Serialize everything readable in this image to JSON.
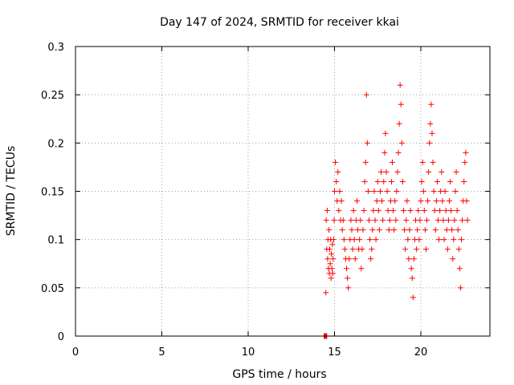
{
  "chart_data": {
    "type": "scatter",
    "title": "Day 147 of 2024, SRMTID for receiver kkai",
    "xlabel": "GPS time / hours",
    "ylabel": "SRMTID / TECUs",
    "xlim": [
      0,
      24
    ],
    "ylim": [
      0,
      0.3
    ],
    "xticks": [
      0,
      5,
      10,
      15,
      20
    ],
    "yticks": [
      0,
      0.05,
      0.1,
      0.15,
      0.2,
      0.25,
      0.3
    ],
    "xtick_labels": [
      "0",
      "5",
      "10",
      "15",
      "20"
    ],
    "ytick_labels": [
      "0",
      "0.05",
      "0.1",
      "0.15",
      "0.2",
      "0.25",
      "0.3"
    ],
    "grid": true,
    "marker": "+",
    "color": "#ff0000",
    "zero_cluster": {
      "x_start": 14.4,
      "x_end": 14.55,
      "y": 0
    },
    "series": [
      {
        "name": "SRMTID",
        "x": [
          14.5,
          14.52,
          14.55,
          14.58,
          14.6,
          14.62,
          14.65,
          14.68,
          14.7,
          14.72,
          14.75,
          14.78,
          14.8,
          14.82,
          14.85,
          14.88,
          14.9,
          14.92,
          14.95,
          14.98,
          15.0,
          15.05,
          15.1,
          15.15,
          15.2,
          15.25,
          15.3,
          15.35,
          15.4,
          15.45,
          15.5,
          15.55,
          15.6,
          15.65,
          15.7,
          15.75,
          15.8,
          15.85,
          15.9,
          15.95,
          16.0,
          16.05,
          16.1,
          16.15,
          16.2,
          16.25,
          16.3,
          16.35,
          16.4,
          16.45,
          16.5,
          16.55,
          16.6,
          16.65,
          16.7,
          16.75,
          16.8,
          16.85,
          16.9,
          16.95,
          17.0,
          17.05,
          17.1,
          17.15,
          17.2,
          17.25,
          17.3,
          17.35,
          17.4,
          17.45,
          17.5,
          17.55,
          17.6,
          17.65,
          17.7,
          17.75,
          17.8,
          17.85,
          17.9,
          17.95,
          18.0,
          18.05,
          18.1,
          18.15,
          18.2,
          18.25,
          18.3,
          18.35,
          18.4,
          18.45,
          18.5,
          18.55,
          18.6,
          18.65,
          18.7,
          18.75,
          18.8,
          18.85,
          18.9,
          18.95,
          19.0,
          19.05,
          19.1,
          19.15,
          19.2,
          19.25,
          19.3,
          19.35,
          19.4,
          19.45,
          19.5,
          19.55,
          19.6,
          19.65,
          19.7,
          19.75,
          19.8,
          19.85,
          19.9,
          19.95,
          20.0,
          20.05,
          20.1,
          20.15,
          20.2,
          20.25,
          20.3,
          20.35,
          20.4,
          20.45,
          20.5,
          20.55,
          20.6,
          20.65,
          20.7,
          20.75,
          20.8,
          20.85,
          20.9,
          20.95,
          21.0,
          21.05,
          21.1,
          21.15,
          21.2,
          21.25,
          21.3,
          21.35,
          21.4,
          21.45,
          21.5,
          21.55,
          21.6,
          21.65,
          21.7,
          21.75,
          21.8,
          21.85,
          21.9,
          21.95,
          22.0,
          22.05,
          22.1,
          22.15,
          22.2,
          22.25,
          22.3,
          22.35,
          22.4,
          22.45,
          22.5,
          22.55,
          22.6,
          22.65,
          22.7
        ],
        "y": [
          0.045,
          0.12,
          0.09,
          0.13,
          0.08,
          0.1,
          0.07,
          0.11,
          0.065,
          0.09,
          0.075,
          0.1,
          0.06,
          0.085,
          0.07,
          0.095,
          0.065,
          0.08,
          0.1,
          0.12,
          0.15,
          0.18,
          0.16,
          0.14,
          0.17,
          0.13,
          0.15,
          0.12,
          0.14,
          0.11,
          0.12,
          0.1,
          0.09,
          0.08,
          0.07,
          0.06,
          0.05,
          0.08,
          0.1,
          0.12,
          0.11,
          0.09,
          0.13,
          0.1,
          0.08,
          0.12,
          0.14,
          0.11,
          0.09,
          0.1,
          0.12,
          0.07,
          0.09,
          0.11,
          0.13,
          0.16,
          0.18,
          0.25,
          0.2,
          0.15,
          0.12,
          0.1,
          0.08,
          0.09,
          0.11,
          0.13,
          0.15,
          0.12,
          0.1,
          0.14,
          0.16,
          0.13,
          0.11,
          0.15,
          0.17,
          0.14,
          0.12,
          0.16,
          0.19,
          0.21,
          0.17,
          0.15,
          0.13,
          0.11,
          0.12,
          0.14,
          0.16,
          0.18,
          0.13,
          0.11,
          0.14,
          0.12,
          0.15,
          0.17,
          0.19,
          0.22,
          0.26,
          0.24,
          0.2,
          0.16,
          0.13,
          0.11,
          0.09,
          0.12,
          0.14,
          0.1,
          0.08,
          0.11,
          0.13,
          0.07,
          0.06,
          0.04,
          0.08,
          0.1,
          0.12,
          0.09,
          0.11,
          0.13,
          0.1,
          0.12,
          0.14,
          0.16,
          0.18,
          0.15,
          0.13,
          0.11,
          0.09,
          0.12,
          0.14,
          0.17,
          0.2,
          0.22,
          0.24,
          0.21,
          0.18,
          0.15,
          0.13,
          0.11,
          0.14,
          0.16,
          0.12,
          0.1,
          0.13,
          0.15,
          0.17,
          0.14,
          0.12,
          0.1,
          0.15,
          0.13,
          0.11,
          0.09,
          0.12,
          0.14,
          0.16,
          0.13,
          0.11,
          0.08,
          0.1,
          0.12,
          0.15,
          0.17,
          0.13,
          0.11,
          0.09,
          0.07,
          0.05,
          0.1,
          0.12,
          0.14,
          0.16,
          0.18,
          0.19,
          0.14,
          0.12
        ]
      }
    ]
  }
}
